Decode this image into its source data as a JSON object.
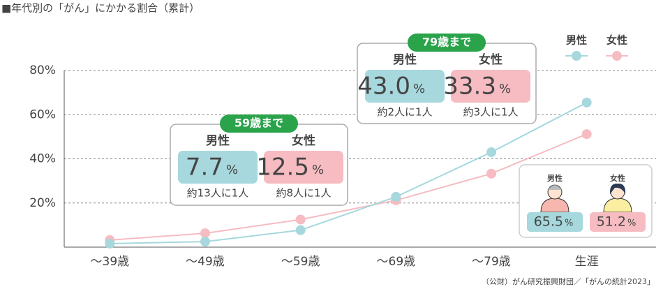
{
  "chart_data": {
    "type": "line",
    "title": "■年代別の「がん」にかかる割合（累計）",
    "source": "（公財）がん研究振興財団／「がんの統計2023」",
    "categories": [
      "～39歳",
      "～49歳",
      "～59歳",
      "～69歳",
      "～79歳",
      "生涯"
    ],
    "series": [
      {
        "name": "男性",
        "color": "#a6d8dd",
        "values": [
          1.6,
          2.5,
          7.7,
          22.8,
          43.0,
          65.5
        ]
      },
      {
        "name": "女性",
        "color": "#f6bcc2",
        "values": [
          3.2,
          6.3,
          12.5,
          21.2,
          33.3,
          51.2
        ]
      }
    ],
    "ylim": [
      0,
      80
    ],
    "yticks": [
      {
        "value": 20,
        "label": "20%"
      },
      {
        "value": 40,
        "label": "40%"
      },
      {
        "value": 60,
        "label": "60%"
      },
      {
        "value": 80,
        "label": "80%"
      }
    ],
    "grid": true,
    "legend": "top-right",
    "callouts": [
      {
        "title": "59歳まで",
        "items": [
          {
            "name": "男性",
            "value": "7.7",
            "unit": "%",
            "note": "約13人に1人"
          },
          {
            "name": "女性",
            "value": "12.5",
            "unit": "%",
            "note": "約8人に1人"
          }
        ]
      },
      {
        "title": "79歳まで",
        "items": [
          {
            "name": "男性",
            "value": "43.0",
            "unit": "%",
            "note": "約2人に1人"
          },
          {
            "name": "女性",
            "value": "33.3",
            "unit": "%",
            "note": "約3人に1人"
          }
        ]
      }
    ],
    "lifetime": {
      "items": [
        {
          "name": "男性",
          "value": "65.5",
          "unit": "%"
        },
        {
          "name": "女性",
          "value": "51.2",
          "unit": "%"
        }
      ]
    }
  }
}
